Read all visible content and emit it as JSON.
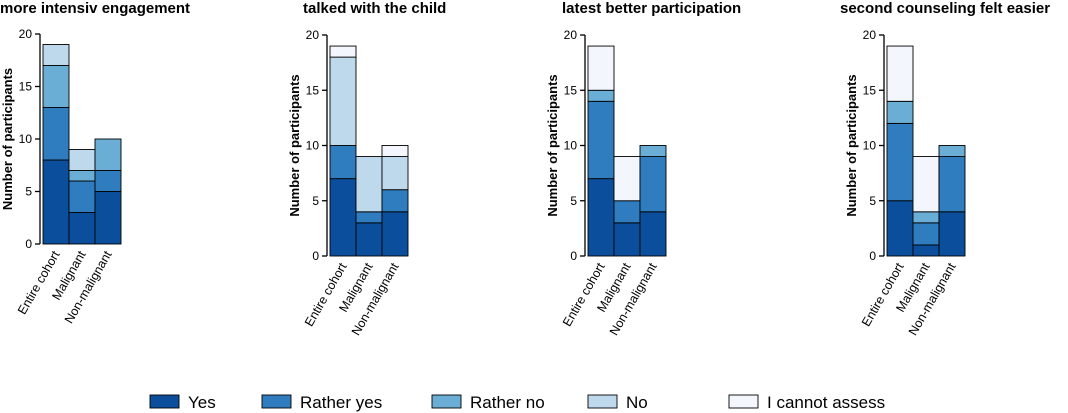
{
  "chart_data": {
    "type": "bar",
    "stacked": true,
    "categories": [
      "Entire cohort",
      "Malignant",
      "Non-malignant"
    ],
    "ylabel": "Number of participants",
    "ylim": [
      0,
      20
    ],
    "yticks": [
      0,
      5,
      10,
      15,
      20
    ],
    "colors": {
      "Yes": "#0b4f9c",
      "Rather yes": "#2f7dbf",
      "Rather no": "#6aaed6",
      "No": "#bfd9ec",
      "I cannot assess": "#f3f6fc"
    },
    "legend": [
      "Yes",
      "Rather yes",
      "Rather no",
      "No",
      "I cannot assess"
    ],
    "legend_position": "bottom",
    "panels": [
      {
        "title": "more intensiv engagement",
        "series": [
          {
            "name": "Yes",
            "values": [
              8,
              3,
              5
            ]
          },
          {
            "name": "Rather yes",
            "values": [
              5,
              3,
              2
            ]
          },
          {
            "name": "Rather no",
            "values": [
              4,
              1,
              3
            ]
          },
          {
            "name": "No",
            "values": [
              2,
              2,
              0
            ]
          },
          {
            "name": "I cannot assess",
            "values": [
              0,
              0,
              0
            ]
          }
        ]
      },
      {
        "title": "talked with the child",
        "series": [
          {
            "name": "Yes",
            "values": [
              7,
              3,
              4
            ]
          },
          {
            "name": "Rather yes",
            "values": [
              3,
              1,
              2
            ]
          },
          {
            "name": "Rather no",
            "values": [
              0,
              0,
              0
            ]
          },
          {
            "name": "No",
            "values": [
              8,
              5,
              3
            ]
          },
          {
            "name": "I cannot assess",
            "values": [
              1,
              0,
              1
            ]
          }
        ]
      },
      {
        "title": "latest better participation",
        "series": [
          {
            "name": "Yes",
            "values": [
              7,
              3,
              4
            ]
          },
          {
            "name": "Rather yes",
            "values": [
              7,
              2,
              5
            ]
          },
          {
            "name": "Rather no",
            "values": [
              1,
              0,
              1
            ]
          },
          {
            "name": "No",
            "values": [
              0,
              0,
              0
            ]
          },
          {
            "name": "I cannot assess",
            "values": [
              4,
              4,
              0
            ]
          }
        ]
      },
      {
        "title": "second counseling felt easier",
        "series": [
          {
            "name": "Yes",
            "values": [
              5,
              1,
              4
            ]
          },
          {
            "name": "Rather yes",
            "values": [
              7,
              2,
              5
            ]
          },
          {
            "name": "Rather no",
            "values": [
              2,
              1,
              1
            ]
          },
          {
            "name": "No",
            "values": [
              0,
              0,
              0
            ]
          },
          {
            "name": "I cannot assess",
            "values": [
              5,
              5,
              0
            ]
          }
        ]
      }
    ]
  }
}
